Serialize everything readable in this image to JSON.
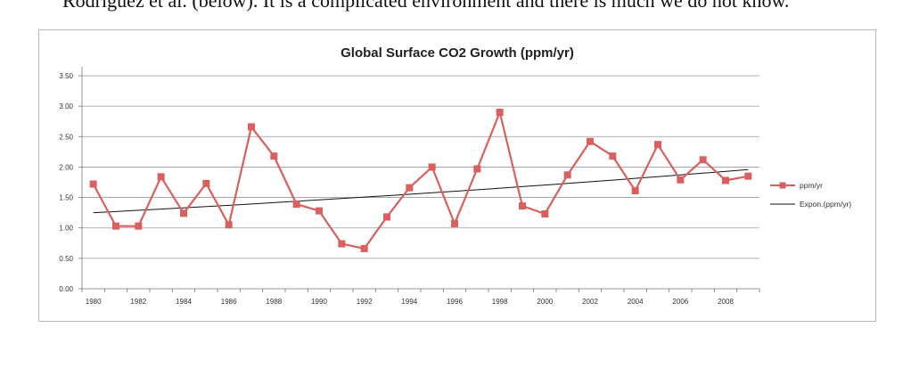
{
  "document": {
    "intro_text": "Rodriguez et al. (below). It is a complicated environment and there is much we do not know."
  },
  "chart_data": {
    "type": "line",
    "title": "Global Surface CO2 Growth (ppm/yr)",
    "xlabel": "",
    "ylabel": "",
    "x": [
      1980,
      1981,
      1982,
      1983,
      1984,
      1985,
      1986,
      1987,
      1988,
      1989,
      1990,
      1991,
      1992,
      1993,
      1994,
      1995,
      1996,
      1997,
      1998,
      1999,
      2000,
      2001,
      2002,
      2003,
      2004,
      2005,
      2006,
      2007,
      2008,
      2009
    ],
    "series": [
      {
        "name": "ppm/yr",
        "color": "#d9605e",
        "values": [
          1.72,
          1.03,
          1.03,
          1.84,
          1.24,
          1.73,
          1.05,
          2.66,
          2.18,
          1.39,
          1.28,
          0.74,
          0.66,
          1.18,
          1.66,
          2.0,
          1.07,
          1.97,
          2.9,
          1.36,
          1.23,
          1.87,
          2.42,
          2.18,
          1.61,
          2.37,
          1.79,
          2.12,
          1.78,
          1.85
        ]
      },
      {
        "name": "Expon.(ppm/yr)",
        "color": "#111111",
        "type": "trendline",
        "x": [
          1980,
          2009
        ],
        "values": [
          1.25,
          1.96
        ]
      }
    ],
    "xticks": [
      "1980",
      "1982",
      "1984",
      "1986",
      "1988",
      "1990",
      "1992",
      "1994",
      "1996",
      "1998",
      "2000",
      "2002",
      "2004",
      "2006",
      "2008"
    ],
    "yticks": [
      "0.00",
      "0.50",
      "1.00",
      "1.50",
      "2.00",
      "2.50",
      "3.00",
      "3.50"
    ],
    "ylim": [
      0,
      3.5
    ],
    "grid": true,
    "legend": "right"
  }
}
